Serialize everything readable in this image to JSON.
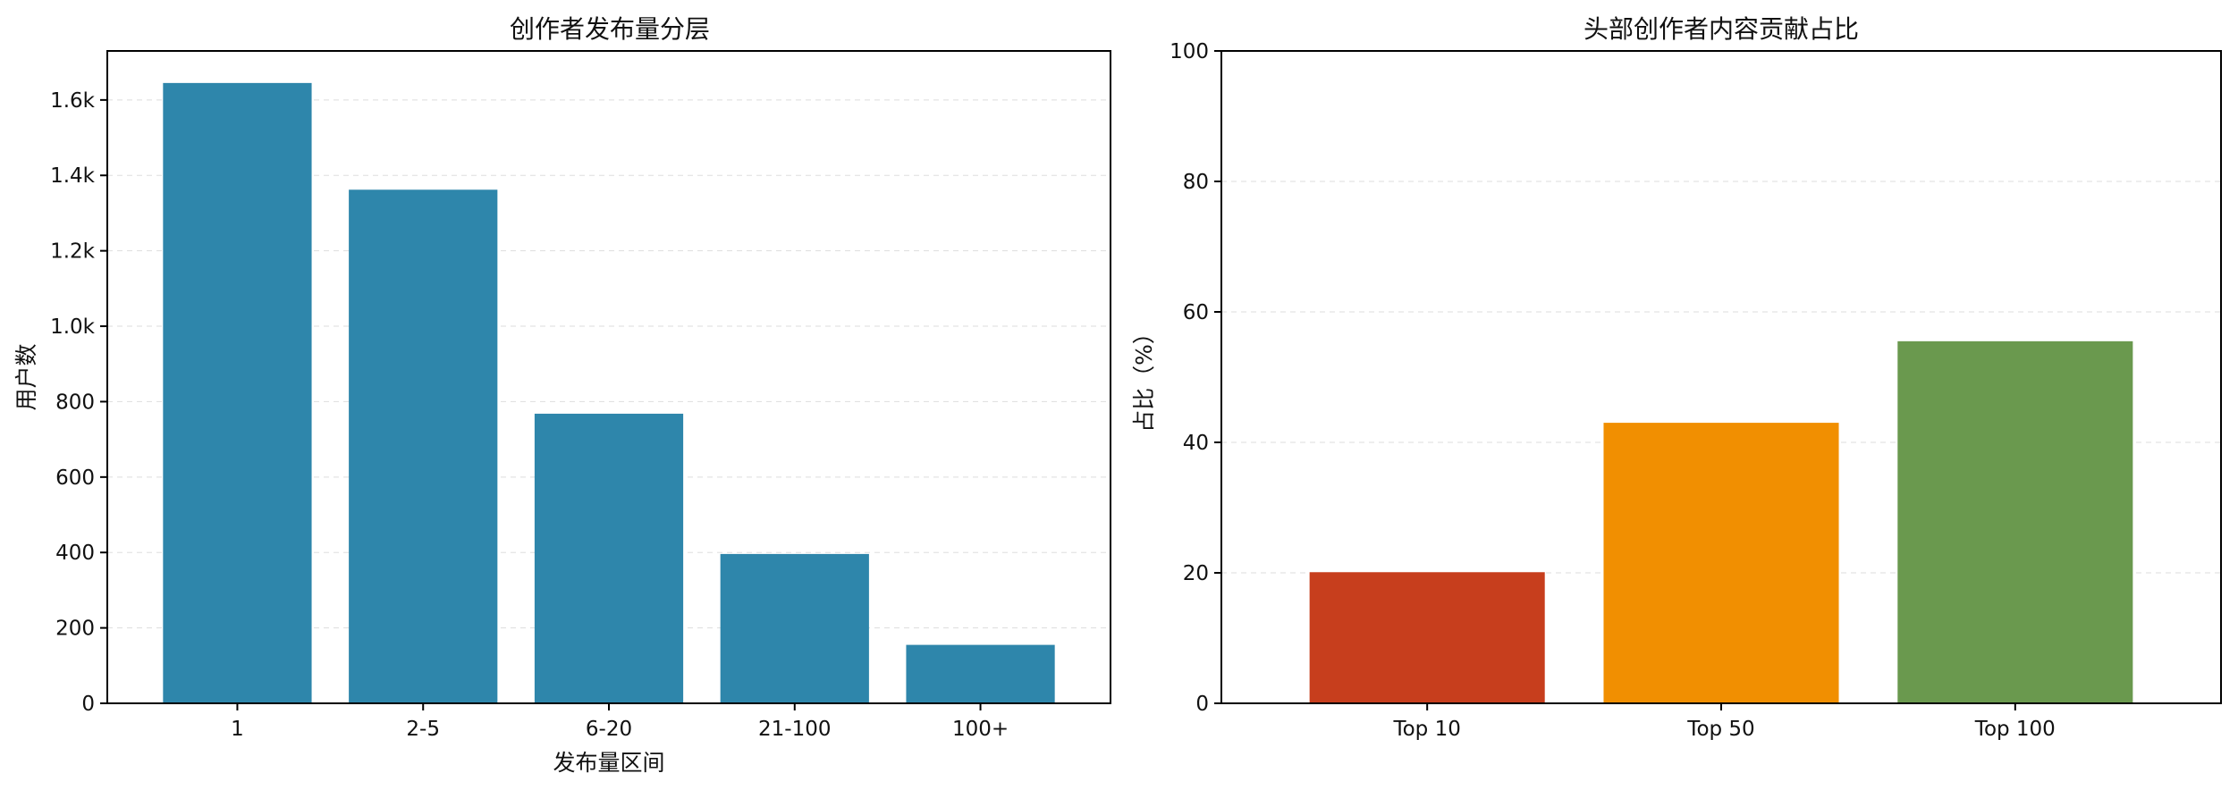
{
  "chart_data": [
    {
      "type": "bar",
      "title": "创作者发布量分层",
      "xlabel": "发布量区间",
      "ylabel": "用户数",
      "categories": [
        "1",
        "2-5",
        "6-20",
        "21-100",
        "100+"
      ],
      "values": [
        1645,
        1362,
        768,
        396,
        155
      ],
      "ylim": [
        0,
        1730
      ],
      "yticks": [
        0,
        200,
        400,
        600,
        800,
        1000,
        1200,
        1400,
        1600
      ],
      "ytick_labels": [
        "0",
        "200",
        "400",
        "600",
        "800",
        "1.0k",
        "1.2k",
        "1.4k",
        "1.6k"
      ],
      "colors": [
        "#2e86ab",
        "#2e86ab",
        "#2e86ab",
        "#2e86ab",
        "#2e86ab"
      ],
      "grid": "y-dashed"
    },
    {
      "type": "bar",
      "title": "头部创作者内容贡献占比",
      "xlabel": "",
      "ylabel": "占比（%）",
      "categories": [
        "Top 10",
        "Top 50",
        "Top 100"
      ],
      "values": [
        20.1,
        43.0,
        55.5
      ],
      "ylim": [
        0,
        100
      ],
      "yticks": [
        0,
        20,
        40,
        60,
        80,
        100
      ],
      "ytick_labels": [
        "0",
        "20",
        "40",
        "60",
        "80",
        "100"
      ],
      "colors": [
        "#c73e1d",
        "#f18f01",
        "#6a994e"
      ],
      "grid": "y-dashed"
    }
  ]
}
